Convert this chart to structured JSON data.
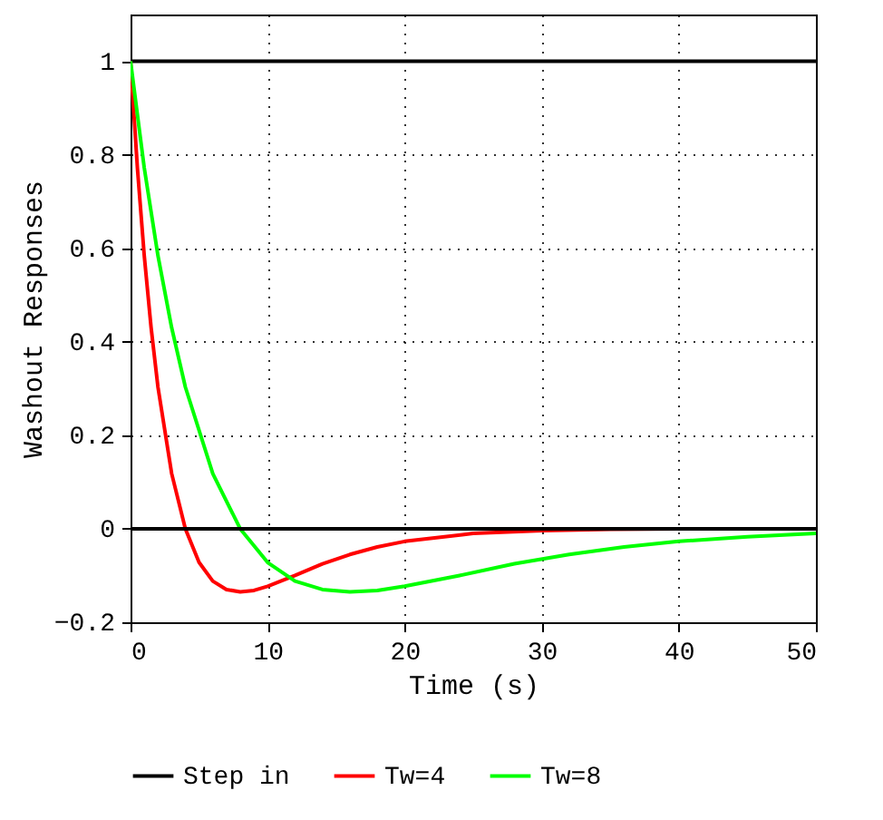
{
  "chart_data": {
    "type": "line",
    "xlabel": "Time (s)",
    "ylabel": "Washout Responses",
    "xlim": [
      0,
      50
    ],
    "xticks": [
      0,
      10,
      20,
      30,
      40,
      50
    ],
    "ylim": [
      -0.2,
      1.1
    ],
    "yticks": [
      -0.2,
      0,
      0.2,
      0.4,
      0.6,
      0.8,
      1
    ],
    "grid": true,
    "legend": "bottom",
    "ref_lines": [
      {
        "axis": "y",
        "value": 0,
        "color": "#000000"
      }
    ],
    "series": [
      {
        "name": "Step in",
        "color": "#000000",
        "line_style": "solid",
        "x": [
          0,
          50
        ],
        "values": [
          1,
          1
        ]
      },
      {
        "name": "Tw=4",
        "color": "#ff0000",
        "x": [
          0,
          0.5,
          1,
          1.5,
          2,
          3,
          4,
          5,
          6,
          7,
          8,
          9,
          10,
          12,
          14,
          16,
          18,
          20,
          25,
          30,
          35,
          40,
          50
        ],
        "values": [
          1,
          0.772,
          0.584,
          0.43,
          0.303,
          0.118,
          0,
          -0.072,
          -0.112,
          -0.13,
          -0.135,
          -0.132,
          -0.123,
          -0.1,
          -0.075,
          -0.055,
          -0.039,
          -0.027,
          -0.01,
          -0.004,
          -0.001,
          0,
          0
        ]
      },
      {
        "name": "Tw=8",
        "color": "#00ff00",
        "x": [
          0,
          1,
          2,
          3,
          4,
          6,
          8,
          10,
          12,
          14,
          16,
          18,
          20,
          24,
          28,
          32,
          36,
          40,
          45,
          50
        ],
        "values": [
          1,
          0.772,
          0.584,
          0.43,
          0.303,
          0.118,
          0,
          -0.072,
          -0.112,
          -0.13,
          -0.135,
          -0.132,
          -0.123,
          -0.1,
          -0.075,
          -0.055,
          -0.039,
          -0.027,
          -0.017,
          -0.01
        ]
      }
    ]
  }
}
